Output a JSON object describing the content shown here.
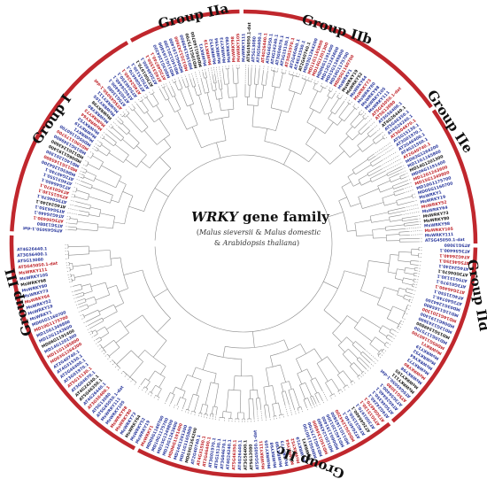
{
  "figure": {
    "title_italic": "WRKY",
    "title_rest": " gene family",
    "subtitle_line1_open": "(",
    "subtitle_line1_species": "Malus sieversii",
    "subtitle_line1_amp": " & ",
    "subtitle_line1_species2": "Malus domestic",
    "subtitle_line2_amp": "& ",
    "subtitle_line2_species": "Arabidopsis thaliana",
    "subtitle_line2_close": ")"
  },
  "groups": [
    {
      "label": "Group I"
    },
    {
      "label": "Group IIa"
    },
    {
      "label": "Group IIb"
    },
    {
      "label": "Group IIe"
    },
    {
      "label": "Group IId"
    },
    {
      "label": "Group IIc"
    },
    {
      "label": "Group III"
    }
  ],
  "colors": {
    "ring": "#c0272d",
    "tree": "#8a8a8a",
    "label_blue": "#2e3c9e",
    "label_red": "#c0272d",
    "label_black": "#1a1a1a"
  },
  "visible_leaf_labels": [
    "ATSG45050.1-dat",
    "AT5G13080",
    "AT3G56400.1",
    "AT4G26440.1",
    "AT5G46350.1",
    "AT4G24240.1",
    "AT3G04670.1",
    "AT5G15130.1",
    "AT3G01970.1",
    "AT2G46400.1",
    "AT4G31550.1",
    "AT2G40740.1",
    "MD03G1264200",
    "MD11G1165800",
    "MD14G1201300",
    "MD06G1191400",
    "MD12G1243600",
    "MD15G1349800",
    "MD10G1175700",
    "MD05G1160700",
    "MsWRKY1",
    "MsWRKY19",
    "MsWRKY52",
    "MsWRKY64",
    "MsWRKY73",
    "MsWRKY80",
    "MsWRKY98",
    "MsWRKY105",
    "MsWRKY111"
  ]
}
